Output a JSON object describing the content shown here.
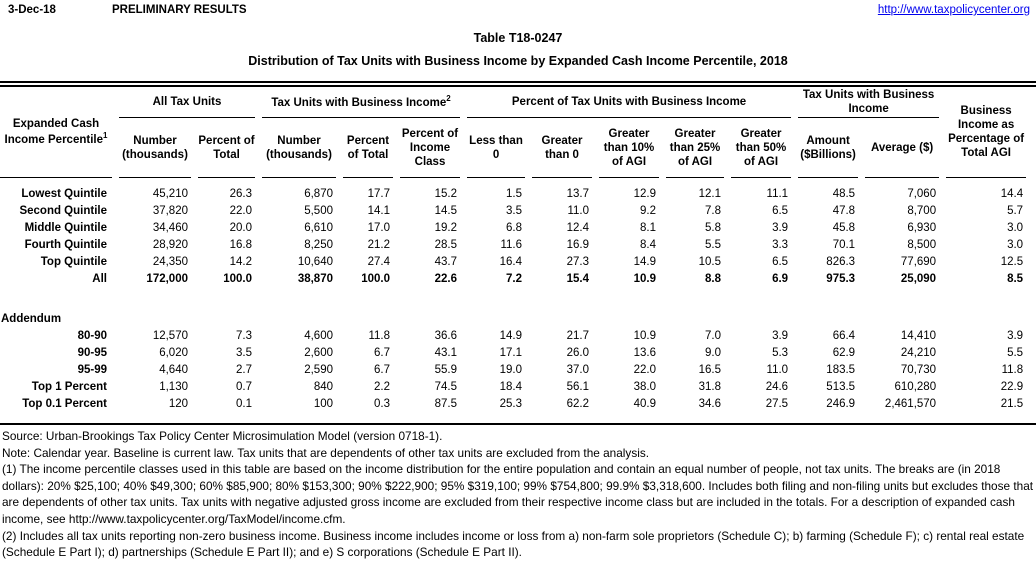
{
  "page_header": {
    "date": "3-Dec-18",
    "status": "PRELIMINARY RESULTS",
    "url": "http://www.taxpolicycenter.org"
  },
  "title": {
    "line1": "Table T18-0247",
    "line2": "Distribution of Tax Units with Business Income by Expanded Cash Income Percentile, 2018"
  },
  "table": {
    "row_header": {
      "text": "Expanded Cash Income Percentile",
      "sup": "1"
    },
    "groups": [
      {
        "label": "All Tax Units",
        "sup": ""
      },
      {
        "label": "Tax Units with Business Income",
        "sup": "2"
      },
      {
        "label": "Percent of Tax Units with Business Income",
        "sup": ""
      },
      {
        "label": "Tax Units with Business Income",
        "sup": ""
      }
    ],
    "last_col_header": "Business Income as Percentage of Total AGI",
    "columns": [
      "Number (thousands)",
      "Percent of Total",
      "Number (thousands)",
      "Percent of Total",
      "Percent of Income Class",
      "Less than 0",
      "Greater than 0",
      "Greater than 10% of AGI",
      "Greater than 25% of AGI",
      "Greater than 50% of AGI",
      "Amount ($Billions)",
      "Average ($)"
    ],
    "quintile_rows": [
      [
        "Lowest Quintile",
        "45,210",
        "26.3",
        "6,870",
        "17.7",
        "15.2",
        "1.5",
        "13.7",
        "12.9",
        "12.1",
        "11.1",
        "48.5",
        "7,060",
        "14.4"
      ],
      [
        "Second Quintile",
        "37,820",
        "22.0",
        "5,500",
        "14.1",
        "14.5",
        "3.5",
        "11.0",
        "9.2",
        "7.8",
        "6.5",
        "47.8",
        "8,700",
        "5.7"
      ],
      [
        "Middle Quintile",
        "34,460",
        "20.0",
        "6,610",
        "17.0",
        "19.2",
        "6.8",
        "12.4",
        "8.1",
        "5.8",
        "3.9",
        "45.8",
        "6,930",
        "3.0"
      ],
      [
        "Fourth Quintile",
        "28,920",
        "16.8",
        "8,250",
        "21.2",
        "28.5",
        "11.6",
        "16.9",
        "8.4",
        "5.5",
        "3.3",
        "70.1",
        "8,500",
        "3.0"
      ],
      [
        "Top Quintile",
        "24,350",
        "14.2",
        "10,640",
        "27.4",
        "43.7",
        "16.4",
        "27.3",
        "14.9",
        "10.5",
        "6.5",
        "826.3",
        "77,690",
        "12.5"
      ]
    ],
    "total_row": [
      "All",
      "172,000",
      "100.0",
      "38,870",
      "100.0",
      "22.6",
      "7.2",
      "15.4",
      "10.9",
      "8.8",
      "6.9",
      "975.3",
      "25,090",
      "8.5"
    ],
    "addendum_label": "Addendum",
    "addendum_rows": [
      [
        "80-90",
        "12,570",
        "7.3",
        "4,600",
        "11.8",
        "36.6",
        "14.9",
        "21.7",
        "10.9",
        "7.0",
        "3.9",
        "66.4",
        "14,410",
        "3.9"
      ],
      [
        "90-95",
        "6,020",
        "3.5",
        "2,600",
        "6.7",
        "43.1",
        "17.1",
        "26.0",
        "13.6",
        "9.0",
        "5.3",
        "62.9",
        "24,210",
        "5.5"
      ],
      [
        "95-99",
        "4,640",
        "2.7",
        "2,590",
        "6.7",
        "55.9",
        "19.0",
        "37.0",
        "22.0",
        "16.5",
        "11.0",
        "183.5",
        "70,730",
        "11.8"
      ],
      [
        "Top 1 Percent",
        "1,130",
        "0.7",
        "840",
        "2.2",
        "74.5",
        "18.4",
        "56.1",
        "38.0",
        "31.8",
        "24.6",
        "513.5",
        "610,280",
        "22.9"
      ],
      [
        "Top 0.1 Percent",
        "120",
        "0.1",
        "100",
        "0.3",
        "87.5",
        "25.3",
        "62.2",
        "40.9",
        "34.6",
        "27.5",
        "246.9",
        "2,461,570",
        "21.5"
      ]
    ]
  },
  "notes": [
    "Source: Urban-Brookings Tax Policy Center Microsimulation Model (version 0718-1).",
    "Note: Calendar year. Baseline is current law. Tax units that are dependents of other tax units are excluded from the analysis.",
    "(1) The income percentile classes used in this table are based on the income distribution for the entire population and contain an equal number of people, not tax units. The breaks are (in 2018 dollars): 20% $25,100; 40% $49,300; 60% $85,900; 80% $153,300; 90% $222,900; 95% $319,100; 99% $754,800; 99.9% $3,318,600. Includes both filing and non-filing units but excludes those that are dependents of other tax units. Tax units with negative adjusted gross income are excluded from their respective income class but are included in the totals. For a description of expanded cash income, see http://www.taxpolicycenter.org/TaxModel/income.cfm.",
    "(2) Includes all tax units reporting non-zero business income. Business income includes income or loss from a) non-farm sole proprietors (Schedule C); b) farming (Schedule F); c) rental real estate (Schedule E Part I); d) partnerships (Schedule E Part II); and e) S corporations (Schedule E Part II)."
  ]
}
